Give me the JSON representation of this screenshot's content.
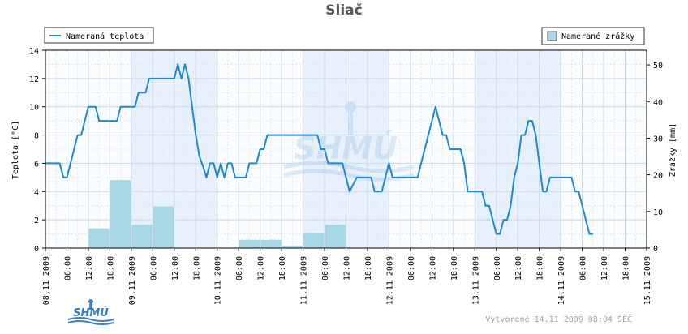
{
  "chart_data": {
    "type": "line",
    "title": "Sliač",
    "y_left_label": "Teplota [°C]",
    "y_right_label": "Zrážky [mm]",
    "y_left_range": [
      0,
      14
    ],
    "y_left_ticks": [
      0,
      2,
      4,
      6,
      8,
      10,
      12,
      14
    ],
    "y_right_range": [
      0,
      54
    ],
    "y_right_ticks": [
      0,
      10,
      20,
      30,
      40,
      50
    ],
    "grid": true,
    "x_range_hours": [
      0,
      168
    ],
    "x_ticks": [
      {
        "h": 0,
        "label": "08.11 2009"
      },
      {
        "h": 6,
        "label": "06:00"
      },
      {
        "h": 12,
        "label": "12:00"
      },
      {
        "h": 18,
        "label": "18:00"
      },
      {
        "h": 24,
        "label": "09.11 2009"
      },
      {
        "h": 30,
        "label": "06:00"
      },
      {
        "h": 36,
        "label": "12:00"
      },
      {
        "h": 42,
        "label": "18:00"
      },
      {
        "h": 48,
        "label": "10.11 2009"
      },
      {
        "h": 54,
        "label": "06:00"
      },
      {
        "h": 60,
        "label": "12:00"
      },
      {
        "h": 66,
        "label": "18:00"
      },
      {
        "h": 72,
        "label": "11.11 2009"
      },
      {
        "h": 78,
        "label": "06:00"
      },
      {
        "h": 84,
        "label": "12:00"
      },
      {
        "h": 90,
        "label": "18:00"
      },
      {
        "h": 96,
        "label": "12.11 2009"
      },
      {
        "h": 102,
        "label": "06:00"
      },
      {
        "h": 108,
        "label": "12:00"
      },
      {
        "h": 114,
        "label": "18:00"
      },
      {
        "h": 120,
        "label": "13.11 2009"
      },
      {
        "h": 126,
        "label": "06:00"
      },
      {
        "h": 132,
        "label": "12:00"
      },
      {
        "h": 138,
        "label": "18:00"
      },
      {
        "h": 144,
        "label": "14.11 2009"
      },
      {
        "h": 150,
        "label": "06:00"
      },
      {
        "h": 156,
        "label": "12:00"
      },
      {
        "h": 162,
        "label": "18:00"
      },
      {
        "h": 168,
        "label": "15.11 2009"
      }
    ],
    "series": [
      {
        "name": "Nameraná teplota",
        "color": "#1e88d0",
        "axis": "left",
        "points": [
          [
            0,
            6
          ],
          [
            4,
            6
          ],
          [
            5,
            5
          ],
          [
            6,
            5
          ],
          [
            7,
            6
          ],
          [
            8,
            7
          ],
          [
            9,
            8
          ],
          [
            10,
            8
          ],
          [
            11,
            9
          ],
          [
            12,
            10
          ],
          [
            13,
            10
          ],
          [
            14,
            10
          ],
          [
            15,
            9
          ],
          [
            16,
            9
          ],
          [
            17,
            9
          ],
          [
            18,
            9
          ],
          [
            19,
            9
          ],
          [
            20,
            9
          ],
          [
            21,
            10
          ],
          [
            22,
            10
          ],
          [
            23,
            10
          ],
          [
            24,
            10
          ],
          [
            25,
            10
          ],
          [
            26,
            11
          ],
          [
            27,
            11
          ],
          [
            28,
            11
          ],
          [
            29,
            12
          ],
          [
            30,
            12
          ],
          [
            31,
            12
          ],
          [
            32,
            12
          ],
          [
            33,
            12
          ],
          [
            34,
            12
          ],
          [
            35,
            12
          ],
          [
            36,
            12
          ],
          [
            37,
            13
          ],
          [
            38,
            12
          ],
          [
            39,
            13
          ],
          [
            40,
            12
          ],
          [
            41,
            10
          ],
          [
            42,
            8
          ],
          [
            43,
            6.5
          ],
          [
            44,
            5.8
          ],
          [
            45,
            5
          ],
          [
            46,
            6
          ],
          [
            47,
            6
          ],
          [
            48,
            5
          ],
          [
            49,
            6
          ],
          [
            50,
            5
          ],
          [
            51,
            6
          ],
          [
            52,
            6
          ],
          [
            53,
            5
          ],
          [
            54,
            5
          ],
          [
            55,
            5
          ],
          [
            56,
            5
          ],
          [
            57,
            6
          ],
          [
            58,
            6
          ],
          [
            59,
            6
          ],
          [
            60,
            7
          ],
          [
            61,
            7
          ],
          [
            62,
            8
          ],
          [
            63,
            8
          ],
          [
            64,
            8
          ],
          [
            65,
            8
          ],
          [
            66,
            8
          ],
          [
            67,
            8
          ],
          [
            68,
            8
          ],
          [
            69,
            8
          ],
          [
            70,
            8
          ],
          [
            71,
            8
          ],
          [
            72,
            8
          ],
          [
            73,
            8
          ],
          [
            74,
            8
          ],
          [
            75,
            8
          ],
          [
            76,
            8
          ],
          [
            77,
            7
          ],
          [
            78,
            7
          ],
          [
            79,
            6
          ],
          [
            80,
            6
          ],
          [
            81,
            6
          ],
          [
            82,
            6
          ],
          [
            83,
            6
          ],
          [
            84,
            5
          ],
          [
            85,
            4
          ],
          [
            86,
            4.5
          ],
          [
            87,
            5
          ],
          [
            88,
            5
          ],
          [
            89,
            5
          ],
          [
            90,
            5
          ],
          [
            91,
            5
          ],
          [
            92,
            4
          ],
          [
            93,
            4
          ],
          [
            94,
            4
          ],
          [
            95,
            5
          ],
          [
            96,
            6
          ],
          [
            97,
            5
          ],
          [
            98,
            5
          ],
          [
            99,
            5
          ],
          [
            100,
            5
          ],
          [
            101,
            5
          ],
          [
            102,
            5
          ],
          [
            103,
            5
          ],
          [
            104,
            5
          ],
          [
            105,
            6
          ],
          [
            106,
            7
          ],
          [
            107,
            8
          ],
          [
            108,
            9
          ],
          [
            109,
            10
          ],
          [
            110,
            9
          ],
          [
            111,
            8
          ],
          [
            112,
            8
          ],
          [
            113,
            7
          ],
          [
            114,
            7
          ],
          [
            115,
            7
          ],
          [
            116,
            7
          ],
          [
            117,
            6
          ],
          [
            118,
            4
          ],
          [
            119,
            4
          ],
          [
            120,
            4
          ],
          [
            121,
            4
          ],
          [
            122,
            4
          ],
          [
            123,
            3
          ],
          [
            124,
            3
          ],
          [
            125,
            2
          ],
          [
            126,
            1
          ],
          [
            127,
            1
          ],
          [
            128,
            2
          ],
          [
            129,
            2
          ],
          [
            130,
            3
          ],
          [
            131,
            5
          ],
          [
            132,
            6
          ],
          [
            133,
            8
          ],
          [
            134,
            8
          ],
          [
            135,
            9
          ],
          [
            136,
            9
          ],
          [
            137,
            8
          ],
          [
            138,
            6
          ],
          [
            139,
            4
          ],
          [
            140,
            4
          ],
          [
            141,
            5
          ],
          [
            142,
            5
          ],
          [
            143,
            5
          ],
          [
            144,
            5
          ],
          [
            145,
            5
          ],
          [
            146,
            5
          ],
          [
            147,
            5
          ],
          [
            148,
            4
          ],
          [
            149,
            4
          ],
          [
            150,
            3
          ],
          [
            151,
            2
          ],
          [
            152,
            1
          ],
          [
            153,
            1
          ]
        ]
      },
      {
        "name": "Namerané zrážky",
        "color": "#a8d8e6",
        "axis": "right",
        "bars": [
          {
            "from": 12,
            "to": 18,
            "value": 5.3
          },
          {
            "from": 18,
            "to": 24,
            "value": 18.5
          },
          {
            "from": 24,
            "to": 30,
            "value": 6.3
          },
          {
            "from": 30,
            "to": 36,
            "value": 11.3
          },
          {
            "from": 54,
            "to": 60,
            "value": 2.2
          },
          {
            "from": 60,
            "to": 66,
            "value": 2.2
          },
          {
            "from": 66,
            "to": 72,
            "value": 0.5
          },
          {
            "from": 72,
            "to": 78,
            "value": 4
          },
          {
            "from": 78,
            "to": 84,
            "value": 6.3
          }
        ]
      }
    ]
  },
  "footer": "Vytvorené 14.11 2009 08:04 SEČ",
  "logo_text": "SHMÚ"
}
